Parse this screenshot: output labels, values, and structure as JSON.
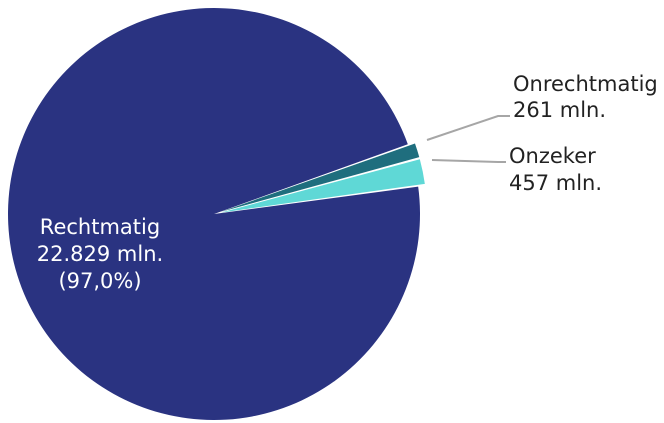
{
  "chart_data": {
    "type": "pie",
    "slices": [
      {
        "label": "Rechtmatig",
        "value": 22829,
        "value_label": "22.829 mln.",
        "percent_label": "(97,0%)",
        "color": "#2a3381",
        "text_color": "#ffffff"
      },
      {
        "label": "Onrechtmatig",
        "value": 261,
        "value_label": "261 mln.",
        "color": "#1f6e7e",
        "text_color": "#222222"
      },
      {
        "label": "Onzeker",
        "value": 457,
        "value_label": "457 mln.",
        "color": "#5fd8d6",
        "text_color": "#222222"
      }
    ],
    "leader_line_color": "#a6a6a6"
  }
}
